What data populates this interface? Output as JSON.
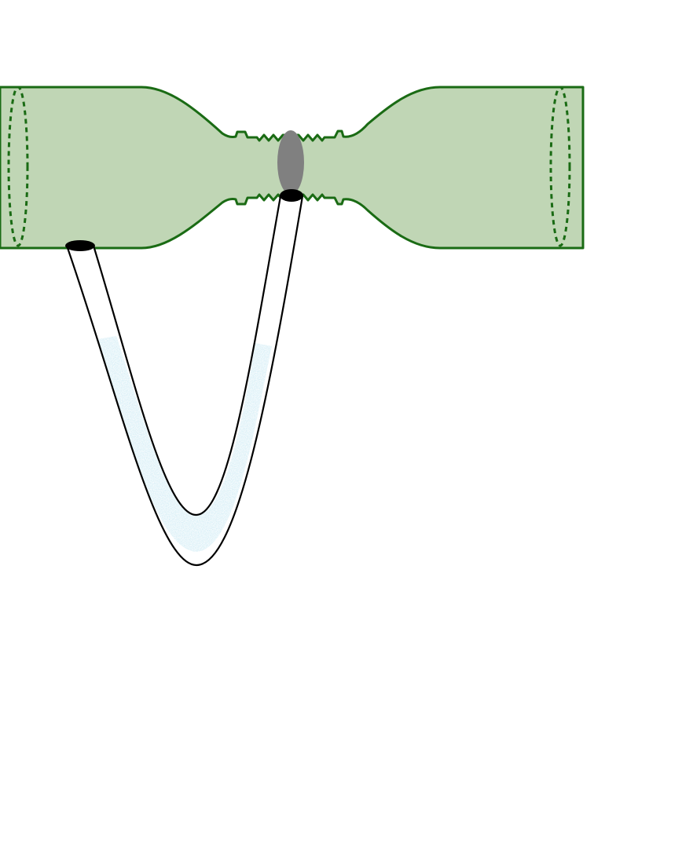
{
  "diagram": {
    "subject": "venturi-tube-with-u-tube-manometer",
    "colors": {
      "pipe_fill": "#c0d6b5",
      "pipe_outline": "#1a6b14",
      "manometer_tube_outline": "#000000",
      "manometer_tube_fill": "#ffffff",
      "manometer_liquid": "#a8d8ea",
      "tap_opening": "#000000",
      "throat_insert": "#808080"
    }
  }
}
